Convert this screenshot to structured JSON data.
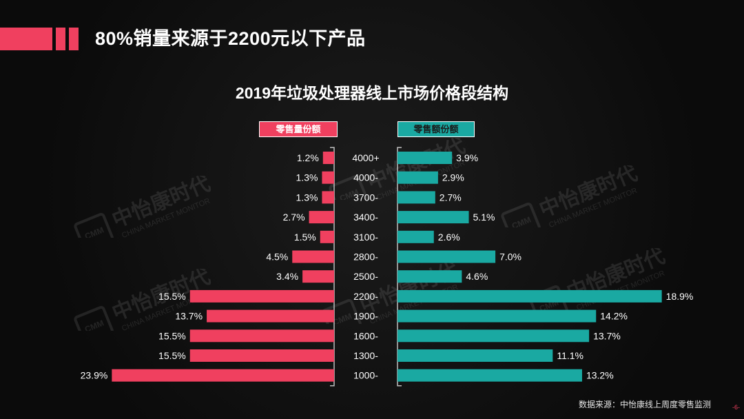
{
  "header": {
    "title": "80%销量来源于2200元以下产品",
    "accent_color": "#f0405f"
  },
  "watermark": {
    "text_cn": "中怡康时代",
    "text_en": "CHINA MARKET MONITOR",
    "logo_text": "CMM"
  },
  "chart_data": {
    "type": "bar",
    "orientation": "horizontal-butterfly",
    "title": "2019年垃圾处理器线上市场价格段结构",
    "categories": [
      "4000+",
      "4000-",
      "3700-",
      "3400-",
      "3100-",
      "2800-",
      "2500-",
      "2200-",
      "1900-",
      "1600-",
      "1300-",
      "1000-"
    ],
    "series": [
      {
        "name": "零售量份额",
        "side": "left",
        "color": "#f0405f",
        "values": [
          1.2,
          1.3,
          1.3,
          2.7,
          1.5,
          4.5,
          3.4,
          15.5,
          13.7,
          15.5,
          15.5,
          23.9
        ],
        "labels": [
          "1.2%",
          "1.3%",
          "1.3%",
          "2.7%",
          "1.5%",
          "4.5%",
          "3.4%",
          "15.5%",
          "13.7%",
          "15.5%",
          "15.5%",
          "23.9%"
        ]
      },
      {
        "name": "零售额份额",
        "side": "right",
        "color": "#1aa9a2",
        "values": [
          3.9,
          2.9,
          2.7,
          5.1,
          2.6,
          7.0,
          4.6,
          18.9,
          14.2,
          13.7,
          11.1,
          13.2
        ],
        "labels": [
          "3.9%",
          "2.9%",
          "2.7%",
          "5.1%",
          "2.6%",
          "7.0%",
          "4.6%",
          "18.9%",
          "14.2%",
          "13.7%",
          "11.1%",
          "13.2%"
        ]
      }
    ],
    "unit": "%",
    "grid": false
  },
  "footer": {
    "source": "数据来源：中怡康线上周度零售监测",
    "page": "-6-"
  }
}
